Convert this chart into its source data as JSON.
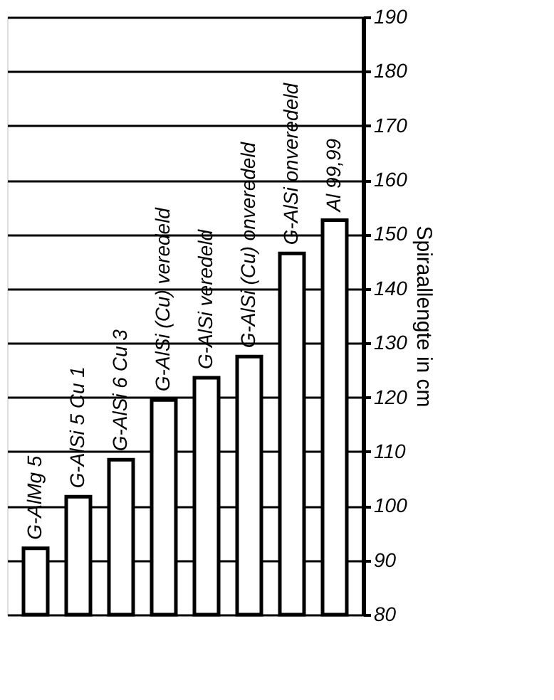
{
  "chart_data": {
    "type": "bar",
    "ylabel": "Spiraallengte in cm",
    "categories": [
      "G-AlMg 5",
      "G-AlSi 5 Cu 1",
      "G-AlSi 6 Cu 3",
      "G-AlSi (Cu) veredeld",
      "G-AlSi veredeld",
      "G-AlSi (Cu) onveredeld",
      "G-AlSi onveredeld",
      "Al 99,99"
    ],
    "values": [
      92.2,
      101.7,
      108.5,
      119.5,
      123.6,
      127.5,
      146.5,
      152.6
    ],
    "color": "#ffffff",
    "ylim": [
      80,
      190
    ],
    "yticks": [
      80,
      90,
      100,
      110,
      120,
      130,
      140,
      150,
      160,
      170,
      180,
      190
    ],
    "grid": "y"
  }
}
